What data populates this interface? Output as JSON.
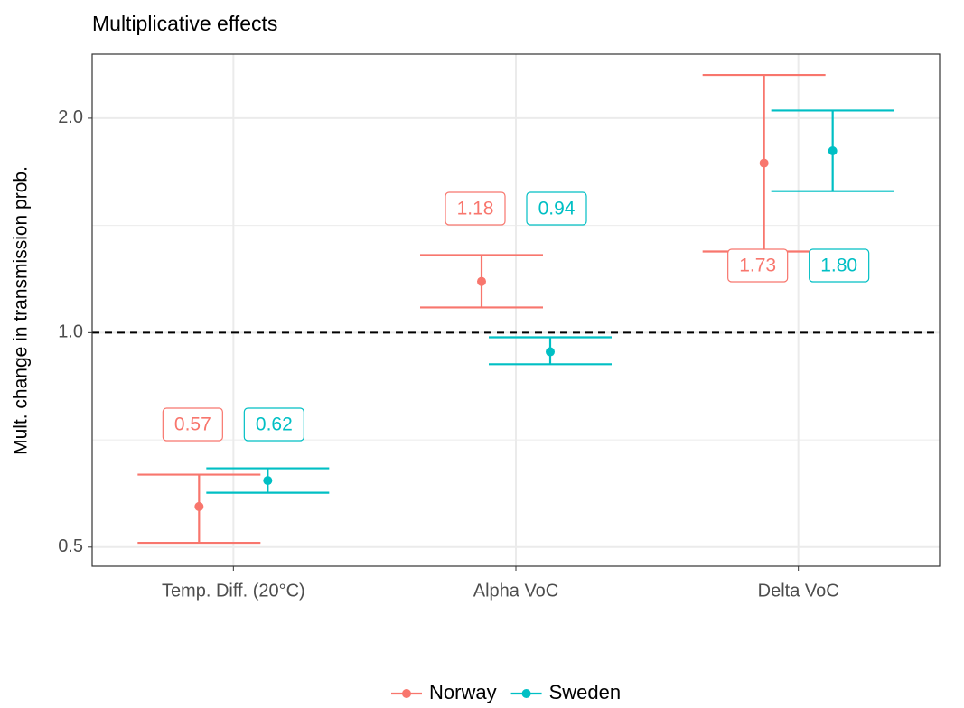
{
  "chart_data": {
    "type": "errorbar",
    "title": "Multiplicative effects",
    "y_label": "Mult. change in transmission prob.",
    "categories": [
      "Temp. Diff. (20°C)",
      "Alpha VoC",
      "Delta VoC"
    ],
    "series": [
      {
        "name": "Norway",
        "color": "#f8766d",
        "values": [
          0.57,
          1.18,
          1.73
        ],
        "value_labels": [
          "0.57",
          "1.18",
          "1.73"
        ],
        "lower": [
          0.507,
          1.085,
          1.3
        ],
        "upper": [
          0.632,
          1.285,
          2.3
        ]
      },
      {
        "name": "Sweden",
        "color": "#00bfc4",
        "values": [
          0.62,
          0.94,
          1.8
        ],
        "value_labels": [
          "0.62",
          "0.94",
          "1.80"
        ],
        "lower": [
          0.596,
          0.903,
          1.58
        ],
        "upper": [
          0.645,
          0.985,
          2.05
        ]
      }
    ],
    "ylim": [
      0.47,
      2.46
    ],
    "yticks": [
      {
        "value": 0.5,
        "label": "0.5"
      },
      {
        "value": 1,
        "label": "1.0"
      },
      {
        "value": 2,
        "label": "2.0"
      }
    ],
    "log_y": true,
    "grid": true,
    "reference_line": 1,
    "legend": "bottom"
  }
}
